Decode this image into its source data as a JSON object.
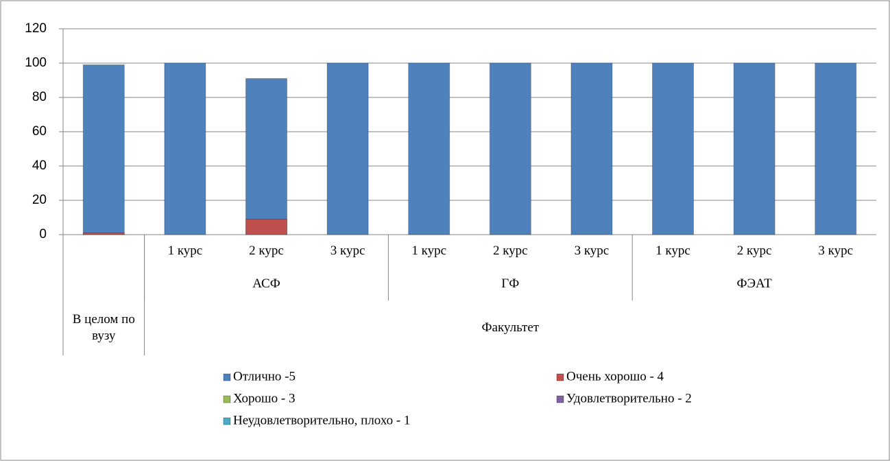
{
  "chart_data": {
    "type": "bar",
    "categories": [
      "В целом по вузу",
      "1 курс",
      "2 курс",
      "3 курс",
      "1 курс",
      "2 курс",
      "3 курс",
      "1 курс",
      "2 курс",
      "3 курс"
    ],
    "category_level2": [
      null,
      "АСФ",
      "АСФ",
      "АСФ",
      "ГФ",
      "ГФ",
      "ГФ",
      "ФЭАТ",
      "ФЭАТ",
      "ФЭАТ"
    ],
    "category_level3": [
      null,
      "Факультет",
      "Факультет",
      "Факультет",
      "Факультет",
      "Факультет",
      "Факультет",
      "Факультет",
      "Факультет",
      "Факультет"
    ],
    "series": [
      {
        "name": "Отлично -5",
        "color": "#4f81bd",
        "values": [
          99,
          100,
          91,
          100,
          100,
          100,
          100,
          100,
          100,
          100
        ]
      },
      {
        "name": "Очень хорошо  - 4",
        "color": "#c0504d",
        "values": [
          1,
          0,
          9,
          0,
          0,
          0,
          0,
          0,
          0,
          0
        ]
      },
      {
        "name": "Хорошо - 3",
        "color": "#9bbb59",
        "values": [
          0,
          0,
          0,
          0,
          0,
          0,
          0,
          0,
          0,
          0
        ]
      },
      {
        "name": "Удовлетворительно - 2",
        "color": "#8064a2",
        "values": [
          0,
          0,
          0,
          0,
          0,
          0,
          0,
          0,
          0,
          0
        ]
      },
      {
        "name": "Неудовлетворительно, плохо - 1",
        "color": "#4bacc6",
        "values": [
          0,
          0,
          0,
          0,
          0,
          0,
          0,
          0,
          0,
          0
        ]
      }
    ],
    "ylim": [
      0,
      120
    ],
    "yticks": [
      0,
      20,
      40,
      60,
      80,
      100,
      120
    ],
    "grid": true,
    "legend": "bottom"
  }
}
